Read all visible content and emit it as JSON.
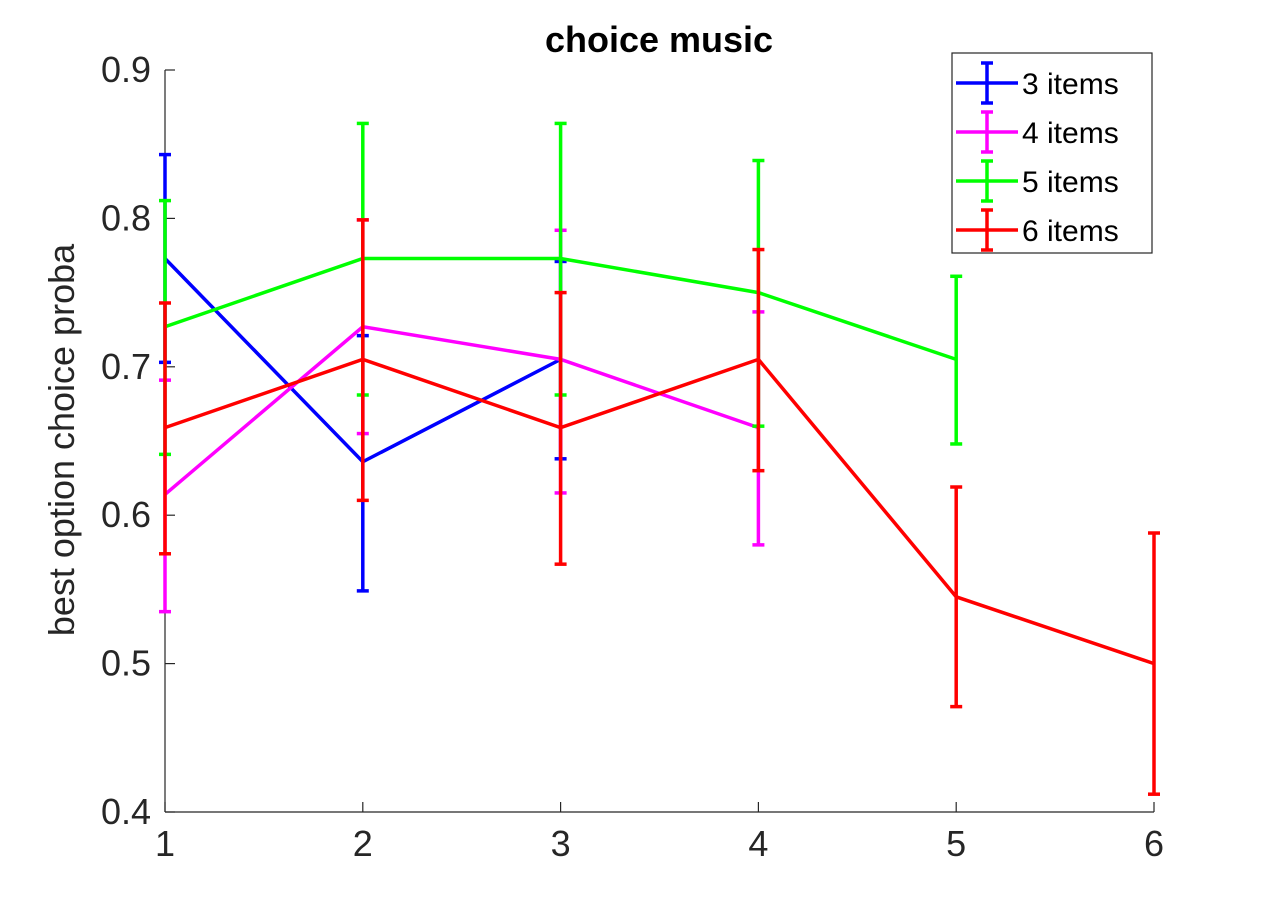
{
  "chart_data": {
    "type": "line",
    "title": "choice music",
    "xlabel": "",
    "ylabel": "best option choice proba",
    "xlim": [
      1,
      6
    ],
    "ylim": [
      0.4,
      0.9
    ],
    "xticks": [
      "1",
      "2",
      "3",
      "4",
      "5",
      "6"
    ],
    "yticks": [
      "0.4",
      "0.5",
      "0.6",
      "0.7",
      "0.8",
      "0.9"
    ],
    "legend_position": "top-right",
    "error_bars": true,
    "series": [
      {
        "name": "3 items",
        "color": "#0000ff",
        "x": [
          1,
          2,
          3
        ],
        "y": [
          0.773,
          0.636,
          0.705
        ],
        "lower": [
          0.703,
          0.549,
          0.638
        ],
        "upper": [
          0.843,
          0.721,
          0.771
        ]
      },
      {
        "name": "4 items",
        "color": "#ff00ff",
        "x": [
          1,
          2,
          3,
          4
        ],
        "y": [
          0.614,
          0.727,
          0.705,
          0.659
        ],
        "lower": [
          0.535,
          0.655,
          0.615,
          0.58
        ],
        "upper": [
          0.691,
          0.799,
          0.792,
          0.737
        ]
      },
      {
        "name": "5 items",
        "color": "#00ff00",
        "x": [
          1,
          2,
          3,
          4,
          5
        ],
        "y": [
          0.727,
          0.773,
          0.773,
          0.75,
          0.705
        ],
        "lower": [
          0.641,
          0.681,
          0.681,
          0.66,
          0.648
        ],
        "upper": [
          0.812,
          0.864,
          0.864,
          0.839,
          0.761
        ]
      },
      {
        "name": "6 items",
        "color": "#ff0000",
        "x": [
          1,
          2,
          3,
          4,
          5,
          6
        ],
        "y": [
          0.659,
          0.705,
          0.659,
          0.705,
          0.545,
          0.5
        ],
        "lower": [
          0.574,
          0.61,
          0.567,
          0.63,
          0.471,
          0.412
        ],
        "upper": [
          0.743,
          0.799,
          0.75,
          0.779,
          0.619,
          0.588
        ]
      }
    ]
  }
}
